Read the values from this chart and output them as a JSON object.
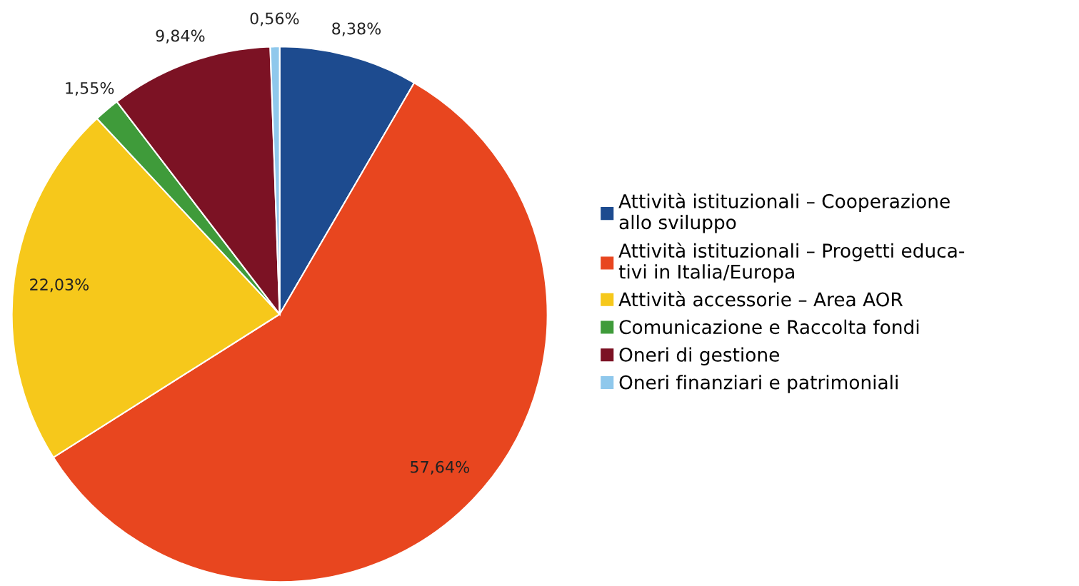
{
  "chart_data": {
    "type": "pie",
    "categories": [
      "Attività istituzionali – Cooperazione\nallo sviluppo",
      "Attività istituzionali – Progetti educa-\ntivi in Italia/Europa",
      "Attività accessorie – Area AOR",
      "Comunicazione e Raccolta fondi",
      "Oneri di gestione",
      "Oneri finanziari e patrimoniali"
    ],
    "values": [
      8.38,
      57.64,
      22.03,
      1.55,
      9.84,
      0.56
    ],
    "value_labels": [
      "8,38%",
      "57,64%",
      "22,03%",
      "1,55%",
      "9,84%",
      "0,56%"
    ],
    "colors": [
      "#1d4b8f",
      "#e8461f",
      "#f6c81b",
      "#3f9b3a",
      "#7c1224",
      "#8fc8ec"
    ],
    "legend": "right"
  }
}
